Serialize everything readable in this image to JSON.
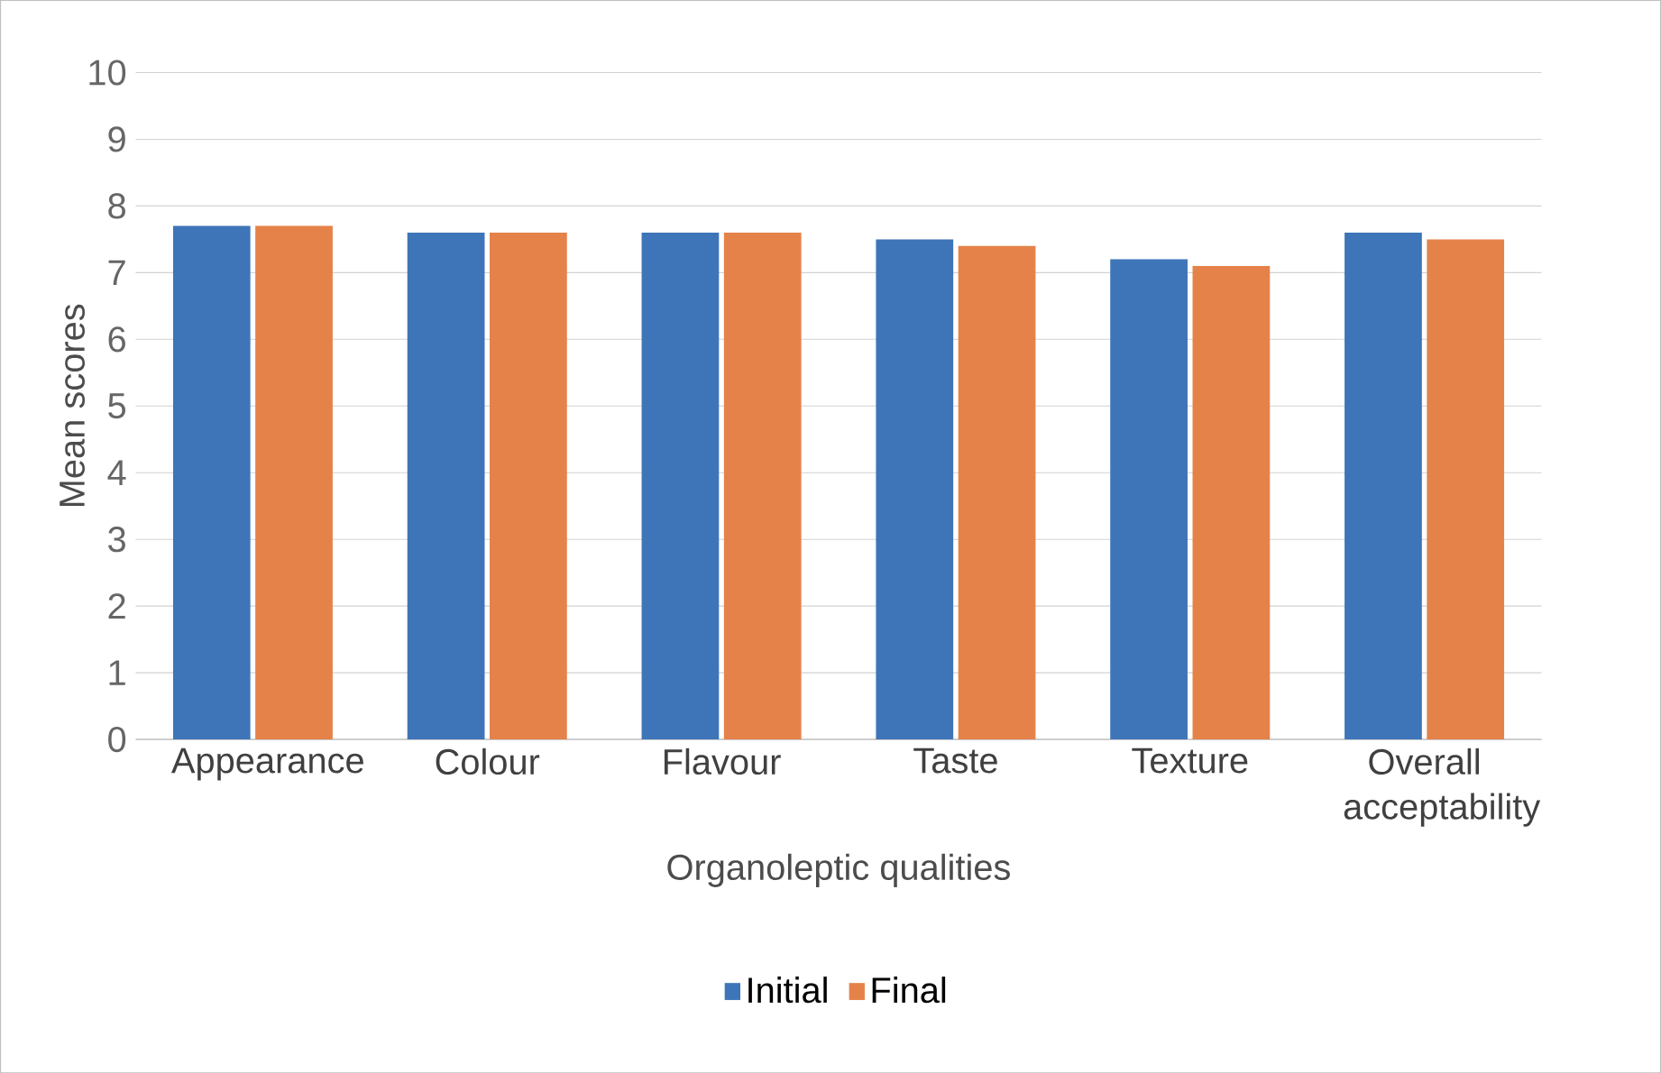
{
  "chart_data": {
    "type": "bar",
    "xlabel": "Organoleptic qualities",
    "ylabel": "Mean scores",
    "categories": [
      "Appearance",
      "Colour",
      "Flavour",
      "Taste",
      "Texture",
      "Overall acceptability"
    ],
    "series": [
      {
        "name": "Initial",
        "color": "#3e75b8",
        "values": [
          7.7,
          7.6,
          7.6,
          7.5,
          7.2,
          7.6
        ]
      },
      {
        "name": "Final",
        "color": "#e5824a",
        "values": [
          7.7,
          7.6,
          7.6,
          7.4,
          7.1,
          7.5
        ]
      }
    ],
    "ylim": [
      0,
      10
    ],
    "yticks": [
      0,
      1,
      2,
      3,
      4,
      5,
      6,
      7,
      8,
      9,
      10
    ],
    "grid": "y",
    "legend": "bottom"
  }
}
